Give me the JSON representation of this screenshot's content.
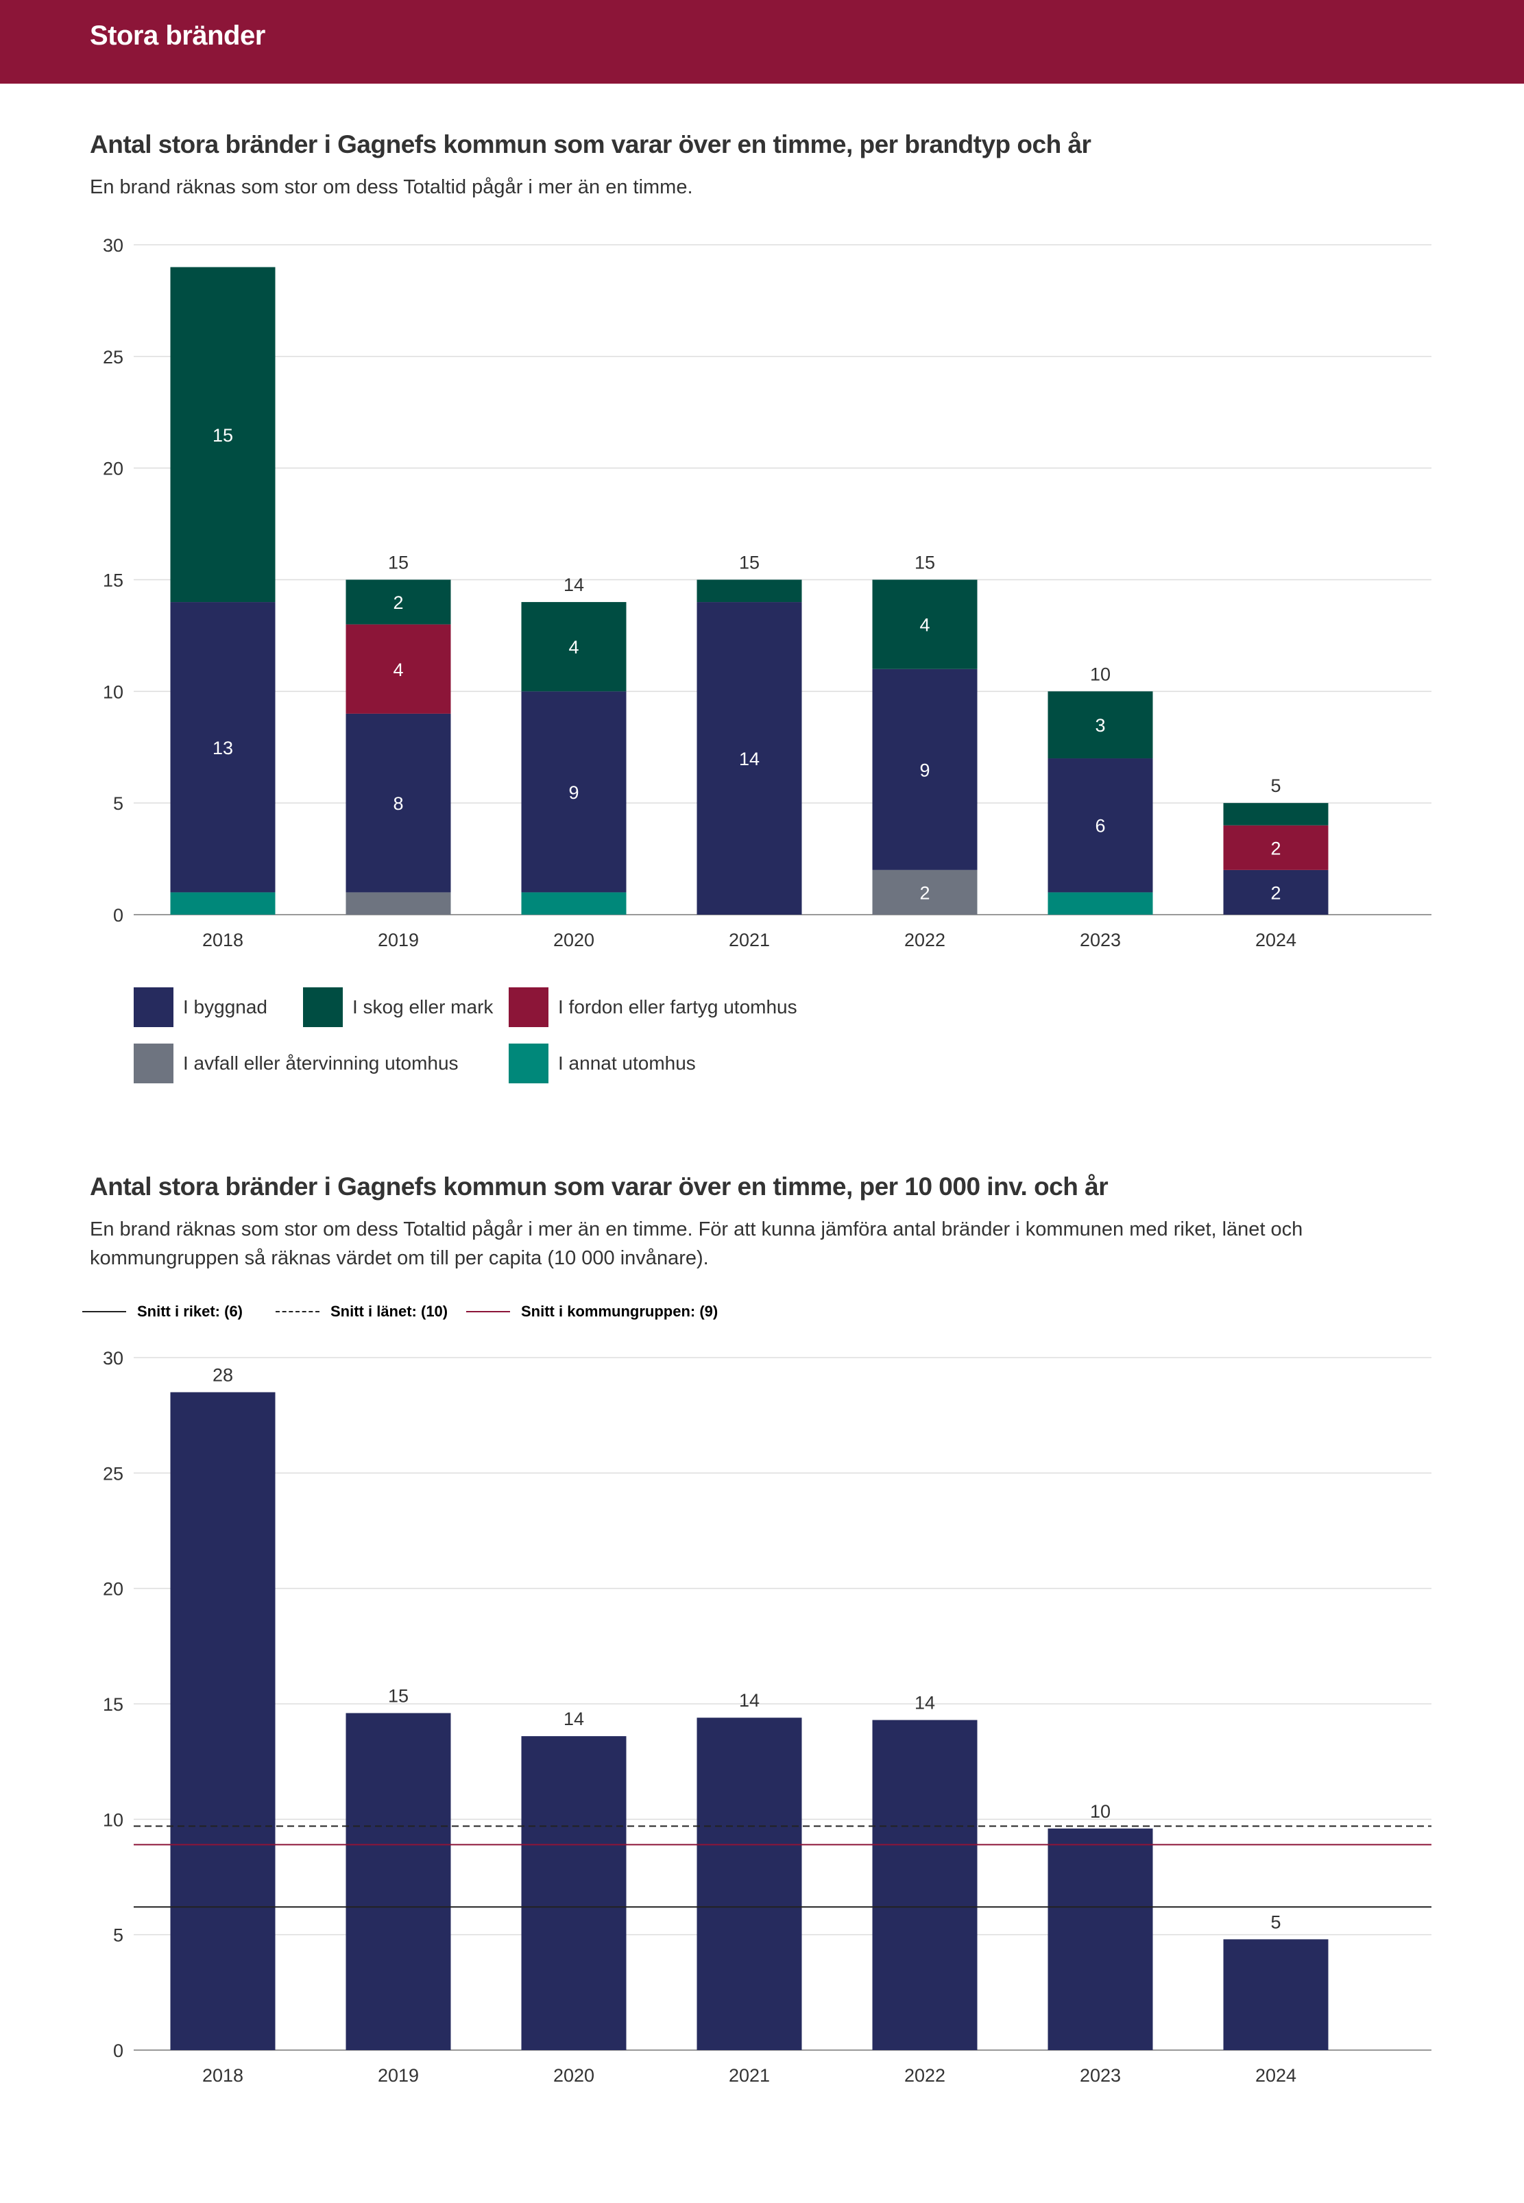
{
  "header": {
    "title": "Stora bränder"
  },
  "chart1": {
    "title": "Antal stora bränder i Gagnefs kommun som varar över en timme, per brandtyp och år",
    "subtitle": "En brand räknas som stor om dess Totaltid pågår i mer än en timme."
  },
  "chart2": {
    "title": "Antal stora bränder i Gagnefs kommun som varar över en timme, per 10 000 inv. och år",
    "subtitle": "En brand räknas som stor om dess Totaltid pågår i mer än en timme. För att kunna jämföra antal bränder i kommunen med riket, länet och kommungruppen så räknas värdet om till per capita (10 000 invånare)."
  },
  "legend1": [
    {
      "label": "I byggnad",
      "color": "#262b5e"
    },
    {
      "label": "I skog eller mark",
      "color": "#004d42"
    },
    {
      "label": "I fordon eller fartyg utomhus",
      "color": "#8c1538"
    },
    {
      "label": "I avfall eller återvinning utomhus",
      "color": "#6e7480"
    },
    {
      "label": "I annat utomhus",
      "color": "#00887a"
    }
  ],
  "legend2": [
    {
      "label": "Snitt i riket: (6)",
      "style": "solid",
      "color": "#222222"
    },
    {
      "label": "Snitt i länet: (10)",
      "style": "dashed",
      "color": "#222222"
    },
    {
      "label": "Snitt i kommungruppen: (9)",
      "style": "solid",
      "color": "#8c1538"
    }
  ],
  "chart_data": [
    {
      "type": "bar",
      "stacked": true,
      "title": "Antal stora bränder i Gagnefs kommun som varar över en timme, per brandtyp och år",
      "categories": [
        "2018",
        "2019",
        "2020",
        "2021",
        "2022",
        "2023",
        "2024"
      ],
      "ylim": [
        0,
        30
      ],
      "yticks": [
        0,
        5,
        10,
        15,
        20,
        25,
        30
      ],
      "grid": true,
      "totals": [
        "",
        "15",
        "14",
        "15",
        "15",
        "10",
        "5"
      ],
      "series": [
        {
          "name": "I annat utomhus",
          "color": "#00887a",
          "values": [
            1,
            0,
            1,
            0,
            0,
            1,
            0
          ],
          "labels": [
            "",
            "",
            "",
            "",
            "",
            "",
            ""
          ]
        },
        {
          "name": "I avfall eller återvinning utomhus",
          "color": "#6e7480",
          "values": [
            0,
            1,
            0,
            0,
            2,
            0,
            0
          ],
          "labels": [
            "",
            "",
            "",
            "",
            "2",
            "",
            ""
          ]
        },
        {
          "name": "I byggnad",
          "color": "#262b5e",
          "values": [
            13,
            8,
            9,
            14,
            9,
            6,
            2
          ],
          "labels": [
            "13",
            "8",
            "9",
            "14",
            "9",
            "6",
            "2"
          ]
        },
        {
          "name": "I fordon eller fartyg utomhus",
          "color": "#8c1538",
          "values": [
            0,
            4,
            0,
            0,
            0,
            0,
            2
          ],
          "labels": [
            "",
            "4",
            "",
            "",
            "",
            "",
            "2"
          ]
        },
        {
          "name": "I skog eller mark",
          "color": "#004d42",
          "values": [
            15,
            2,
            4,
            1,
            4,
            3,
            1
          ],
          "labels": [
            "15",
            "2",
            "4",
            "",
            "4",
            "3",
            ""
          ]
        }
      ]
    },
    {
      "type": "bar",
      "title": "Antal stora bränder i Gagnefs kommun som varar över en timme, per 10 000 inv. och år",
      "categories": [
        "2018",
        "2019",
        "2020",
        "2021",
        "2022",
        "2023",
        "2024"
      ],
      "values": [
        28.5,
        14.6,
        13.6,
        14.4,
        14.3,
        9.6,
        4.8
      ],
      "labels": [
        "28",
        "15",
        "14",
        "14",
        "14",
        "10",
        "5"
      ],
      "color": "#262b5e",
      "ylim": [
        0,
        30
      ],
      "yticks": [
        0,
        5,
        10,
        15,
        20,
        25,
        30
      ],
      "grid": true,
      "reference_lines": [
        {
          "name": "Snitt i riket",
          "value": 6.2,
          "style": "solid",
          "color": "#222222"
        },
        {
          "name": "Snitt i länet",
          "value": 9.7,
          "style": "dashed",
          "color": "#222222"
        },
        {
          "name": "Snitt i kommungruppen",
          "value": 8.9,
          "style": "solid",
          "color": "#8c1538"
        }
      ]
    }
  ]
}
